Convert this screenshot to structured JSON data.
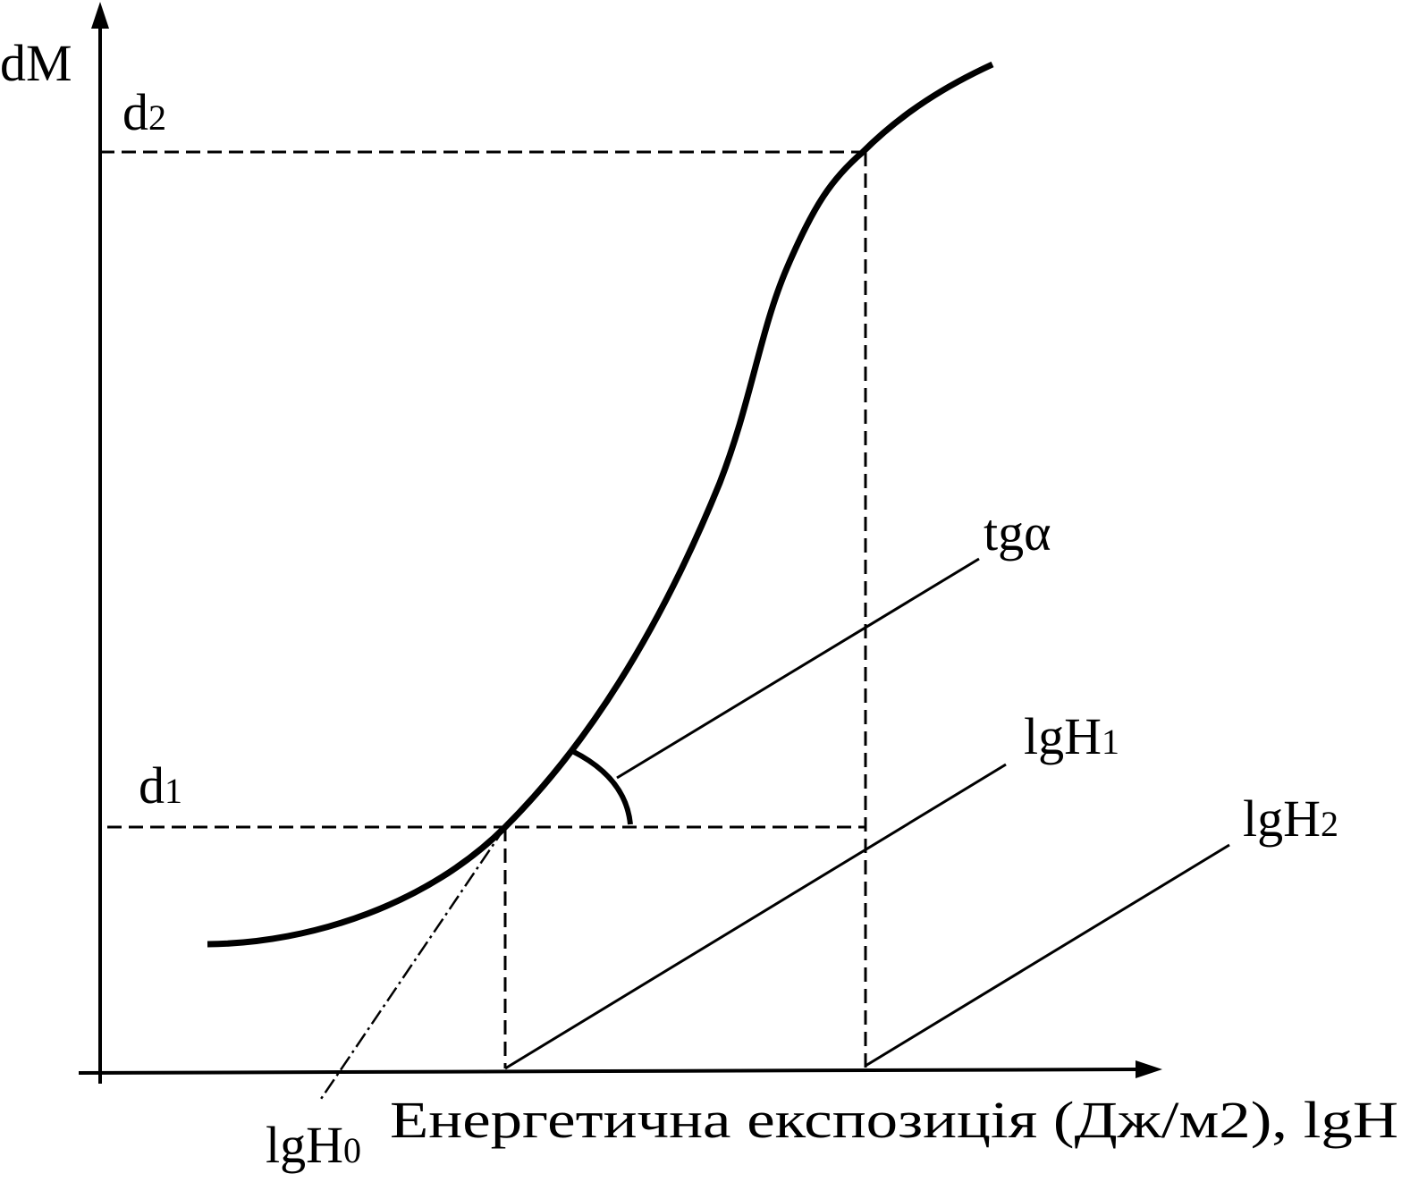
{
  "axis": {
    "y_label": "dM",
    "x_label": "Енергетична експозиція (Дж/м2), lgH"
  },
  "labels": [
    {
      "base": "d",
      "sub": "2"
    },
    {
      "base": "d",
      "sub": "1"
    },
    {
      "base": "tg",
      "sub": "α"
    },
    {
      "base": "lgH",
      "sub": "1"
    },
    {
      "base": "lgH",
      "sub": "2"
    },
    {
      "base": "lgH",
      "sub": "0"
    }
  ]
}
